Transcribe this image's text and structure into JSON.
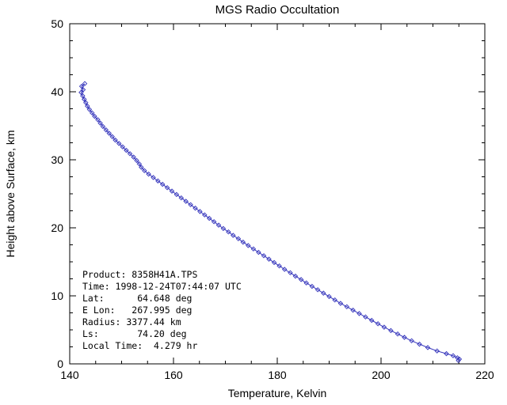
{
  "page": {
    "background": "#ffffff"
  },
  "chart_data": {
    "type": "line",
    "title": "MGS Radio Occultation",
    "xlabel": "Temperature, Kelvin",
    "ylabel": "Height above Surface, km",
    "xlim": [
      140,
      220
    ],
    "ylim": [
      0,
      50
    ],
    "x_major_ticks": [
      140,
      160,
      180,
      200,
      220
    ],
    "x_minor_step": 5,
    "y_major_ticks": [
      0,
      10,
      20,
      30,
      40,
      50
    ],
    "y_minor_step": 2.5,
    "grid": false,
    "legend": "none",
    "axis_color": "#000000",
    "line_color": "#3333bb",
    "marker": "diamond",
    "series": [
      {
        "name": "temperature-profile",
        "points": [
          [
            142.9,
            41.2
          ],
          [
            142.3,
            40.8
          ],
          [
            142.6,
            40.3
          ],
          [
            142.2,
            39.9
          ],
          [
            142.5,
            39.4
          ],
          [
            142.8,
            38.9
          ],
          [
            143.1,
            38.4
          ],
          [
            143.4,
            37.9
          ],
          [
            143.8,
            37.4
          ],
          [
            144.3,
            36.9
          ],
          [
            144.8,
            36.4
          ],
          [
            145.4,
            35.9
          ],
          [
            145.9,
            35.4
          ],
          [
            146.4,
            34.9
          ],
          [
            147.0,
            34.4
          ],
          [
            147.6,
            33.9
          ],
          [
            148.2,
            33.4
          ],
          [
            148.8,
            32.9
          ],
          [
            149.5,
            32.4
          ],
          [
            150.2,
            31.9
          ],
          [
            150.9,
            31.4
          ],
          [
            151.6,
            30.9
          ],
          [
            152.3,
            30.4
          ],
          [
            152.9,
            29.9
          ],
          [
            153.4,
            29.4
          ],
          [
            153.8,
            28.9
          ],
          [
            154.4,
            28.4
          ],
          [
            155.2,
            27.9
          ],
          [
            156.1,
            27.4
          ],
          [
            157.0,
            26.9
          ],
          [
            157.9,
            26.4
          ],
          [
            158.8,
            25.9
          ],
          [
            159.7,
            25.4
          ],
          [
            160.6,
            24.9
          ],
          [
            161.5,
            24.4
          ],
          [
            162.4,
            23.9
          ],
          [
            163.3,
            23.4
          ],
          [
            164.2,
            22.9
          ],
          [
            165.1,
            22.4
          ],
          [
            166.0,
            21.9
          ],
          [
            166.9,
            21.4
          ],
          [
            167.8,
            20.9
          ],
          [
            168.7,
            20.4
          ],
          [
            169.6,
            19.9
          ],
          [
            170.6,
            19.4
          ],
          [
            171.5,
            18.9
          ],
          [
            172.5,
            18.4
          ],
          [
            173.4,
            17.9
          ],
          [
            174.4,
            17.4
          ],
          [
            175.4,
            16.9
          ],
          [
            176.4,
            16.4
          ],
          [
            177.4,
            15.9
          ],
          [
            178.4,
            15.4
          ],
          [
            179.4,
            14.9
          ],
          [
            180.4,
            14.4
          ],
          [
            181.4,
            13.9
          ],
          [
            182.5,
            13.4
          ],
          [
            183.5,
            12.9
          ],
          [
            184.6,
            12.4
          ],
          [
            185.6,
            11.9
          ],
          [
            186.7,
            11.4
          ],
          [
            187.8,
            10.9
          ],
          [
            188.9,
            10.4
          ],
          [
            190.0,
            9.9
          ],
          [
            191.1,
            9.4
          ],
          [
            192.2,
            8.9
          ],
          [
            193.4,
            8.4
          ],
          [
            194.6,
            7.9
          ],
          [
            195.8,
            7.4
          ],
          [
            197.0,
            6.9
          ],
          [
            198.2,
            6.4
          ],
          [
            199.4,
            5.9
          ],
          [
            200.6,
            5.4
          ],
          [
            201.9,
            4.9
          ],
          [
            203.2,
            4.4
          ],
          [
            204.5,
            3.9
          ],
          [
            205.9,
            3.4
          ],
          [
            207.4,
            2.9
          ],
          [
            209.0,
            2.4
          ],
          [
            210.8,
            1.9
          ],
          [
            212.6,
            1.5
          ],
          [
            213.9,
            1.2
          ],
          [
            214.7,
            0.9
          ],
          [
            215.1,
            0.7
          ],
          [
            214.9,
            0.5
          ]
        ]
      }
    ],
    "annotation": {
      "product": "8358H41A.TPS",
      "time": "1998-12-24T07:44:07 UTC",
      "lat": "64.648 deg",
      "e_lon": "267.995 deg",
      "radius": "3377.44 km",
      "ls": "74.20 deg",
      "local_time": "4.279 hr",
      "lines": [
        "Product: 8358H41A.TPS",
        "Time: 1998-12-24T07:44:07 UTC",
        "Lat:      64.648 deg",
        "E Lon:   267.995 deg",
        "Radius: 3377.44 km",
        "Ls:       74.20 deg",
        "Local Time:  4.279 hr"
      ]
    }
  }
}
